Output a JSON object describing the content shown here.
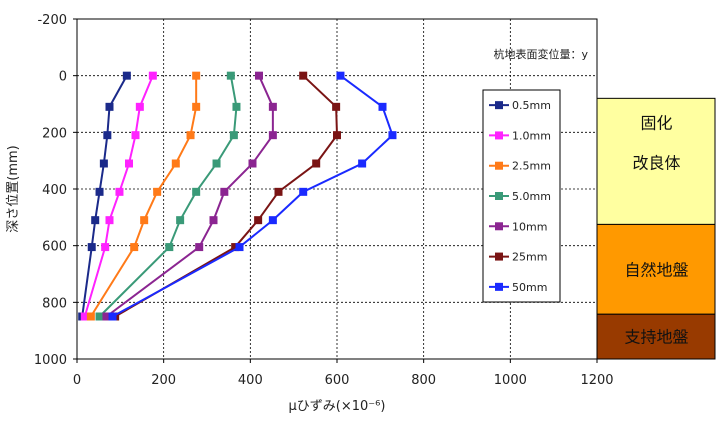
{
  "chart_data": {
    "type": "line",
    "xlabel": "μひずみ(×10⁻⁶)",
    "ylabel": "深さ位置(mm)",
    "annotation": "杭地表面変位量：y",
    "xlim": [
      0,
      1200
    ],
    "ylim": [
      -200,
      1000
    ],
    "y_inverted": true,
    "x_ticks": [
      0,
      200,
      400,
      600,
      800,
      1000,
      1200
    ],
    "y_ticks": [
      -200,
      0,
      200,
      400,
      600,
      800,
      1000
    ],
    "grid": true,
    "legend_position": "right",
    "series": [
      {
        "name": "0.5mm",
        "color": "#1b2a8a",
        "points": [
          [
            115,
            0
          ],
          [
            75,
            110
          ],
          [
            70,
            210
          ],
          [
            62,
            310
          ],
          [
            52,
            410
          ],
          [
            42,
            510
          ],
          [
            34,
            605
          ],
          [
            12,
            850
          ]
        ]
      },
      {
        "name": "1.0mm",
        "color": "#ff22ff",
        "points": [
          [
            175,
            0
          ],
          [
            145,
            110
          ],
          [
            135,
            210
          ],
          [
            120,
            310
          ],
          [
            98,
            410
          ],
          [
            75,
            510
          ],
          [
            65,
            605
          ],
          [
            18,
            850
          ]
        ]
      },
      {
        "name": "2.5mm",
        "color": "#ff7a18",
        "points": [
          [
            275,
            0
          ],
          [
            275,
            110
          ],
          [
            262,
            210
          ],
          [
            228,
            310
          ],
          [
            185,
            410
          ],
          [
            155,
            510
          ],
          [
            132,
            605
          ],
          [
            32,
            850
          ]
        ]
      },
      {
        "name": "5.0mm",
        "color": "#3a9a78",
        "points": [
          [
            355,
            0
          ],
          [
            368,
            110
          ],
          [
            362,
            210
          ],
          [
            322,
            310
          ],
          [
            275,
            410
          ],
          [
            238,
            510
          ],
          [
            213,
            605
          ],
          [
            52,
            850
          ]
        ]
      },
      {
        "name": "10mm",
        "color": "#8b2591",
        "points": [
          [
            420,
            0
          ],
          [
            452,
            110
          ],
          [
            452,
            210
          ],
          [
            405,
            310
          ],
          [
            340,
            410
          ],
          [
            315,
            510
          ],
          [
            282,
            605
          ],
          [
            68,
            850
          ]
        ]
      },
      {
        "name": "25mm",
        "color": "#7a1414",
        "points": [
          [
            522,
            0
          ],
          [
            598,
            110
          ],
          [
            600,
            210
          ],
          [
            552,
            310
          ],
          [
            465,
            410
          ],
          [
            418,
            510
          ],
          [
            365,
            605
          ],
          [
            88,
            850
          ]
        ]
      },
      {
        "name": "50mm",
        "color": "#1a2aff",
        "points": [
          [
            608,
            0
          ],
          [
            705,
            110
          ],
          [
            728,
            210
          ],
          [
            658,
            310
          ],
          [
            522,
            410
          ],
          [
            452,
            510
          ],
          [
            375,
            605
          ],
          [
            82,
            850
          ]
        ]
      }
    ]
  },
  "layers": [
    {
      "lines": [
        "固化",
        "改良体"
      ],
      "color": "#ffffa0",
      "from": 80,
      "to": 525
    },
    {
      "lines": [
        "自然地盤"
      ],
      "color": "#ff9900",
      "from": 525,
      "to": 842
    },
    {
      "lines": [
        "支持地盤"
      ],
      "color": "#983a00",
      "from": 842,
      "to": 1000
    }
  ]
}
